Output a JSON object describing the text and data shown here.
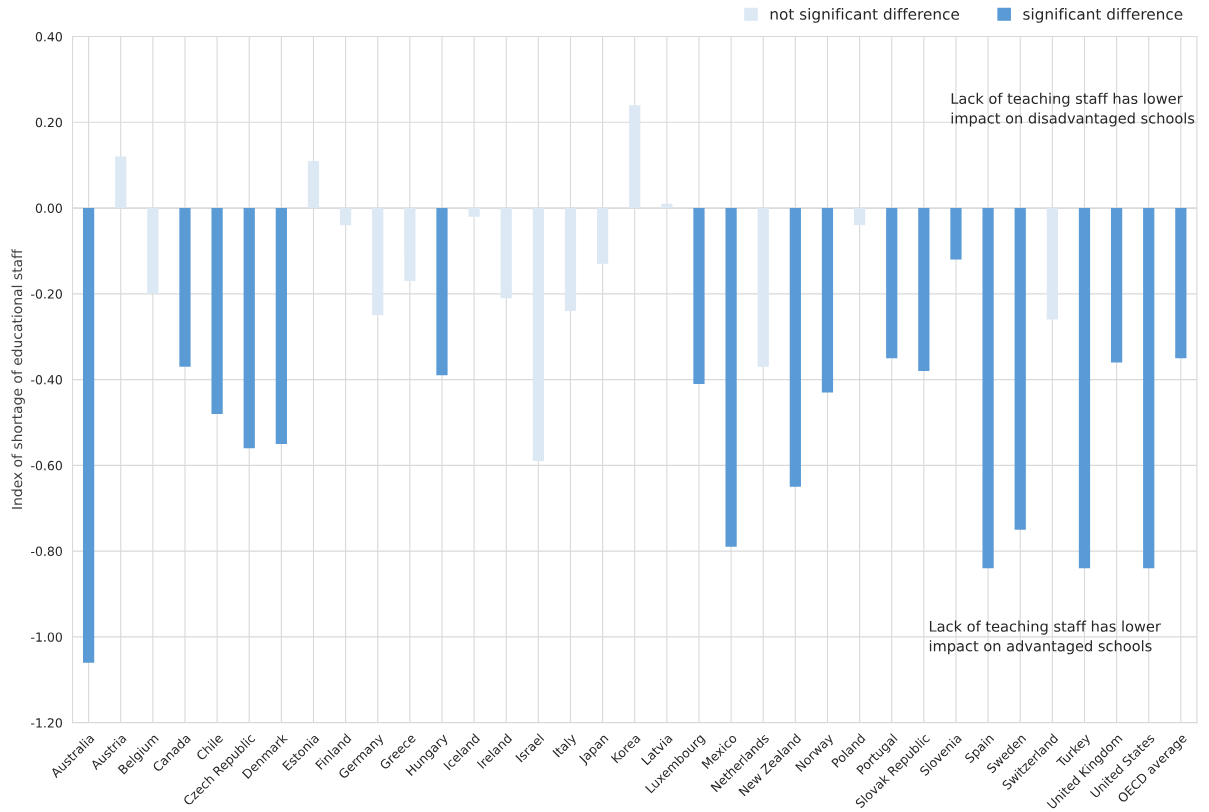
{
  "chart_data": {
    "type": "bar",
    "ylabel": "Index of shortage of educational staff",
    "categories": [
      "Australia",
      "Austria",
      "Belgium",
      "Canada",
      "Chile",
      "Czech Republic",
      "Denmark",
      "Estonia",
      "Finland",
      "Germany",
      "Greece",
      "Hungary",
      "Iceland",
      "Ireland",
      "Israel",
      "Italy",
      "Japan",
      "Korea",
      "Latvia",
      "Luxembourg",
      "Mexico",
      "Netherlands",
      "New Zealand",
      "Norway",
      "Poland",
      "Portugal",
      "Slovak Republic",
      "Slovenia",
      "Spain",
      "Sweden",
      "Switzerland",
      "Turkey",
      "United Kingdom",
      "United States",
      "OECD average"
    ],
    "stacked": true,
    "series": [
      {
        "name": "not significant difference",
        "color": "#dde8f5",
        "values": [
          null,
          0.12,
          -0.2,
          null,
          null,
          null,
          null,
          0.11,
          -0.04,
          -0.25,
          -0.17,
          null,
          -0.02,
          -0.21,
          -0.59,
          -0.24,
          -0.13,
          0.24,
          0.01,
          null,
          null,
          -0.37,
          null,
          null,
          -0.04,
          null,
          null,
          null,
          null,
          null,
          -0.26,
          null,
          null,
          null,
          null
        ]
      },
      {
        "name": "significant difference",
        "color": "#5b9bd5",
        "values": [
          -1.06,
          null,
          null,
          -0.37,
          -0.48,
          -0.56,
          -0.55,
          null,
          null,
          null,
          null,
          -0.39,
          null,
          null,
          null,
          null,
          null,
          null,
          null,
          -0.41,
          -0.79,
          null,
          -0.65,
          -0.43,
          null,
          -0.35,
          -0.38,
          -0.12,
          -0.84,
          -0.75,
          null,
          -0.84,
          -0.36,
          -0.84,
          -0.35
        ]
      }
    ],
    "ylim": [
      -1.2,
      0.4
    ],
    "yticks": [
      {
        "value": -1.2,
        "label": "-1.20"
      },
      {
        "value": -1.0,
        "label": "-1.00"
      },
      {
        "value": -0.8,
        "label": "-0.80"
      },
      {
        "value": -0.6,
        "label": "-0.60"
      },
      {
        "value": -0.4,
        "label": "-0.40"
      },
      {
        "value": -0.2,
        "label": "-0.20"
      },
      {
        "value": 0,
        "label": "0.00"
      },
      {
        "value": 0.2,
        "label": "0.20"
      },
      {
        "value": 0.4,
        "label": "0.40"
      }
    ],
    "grid": true,
    "legend": "top right",
    "annotations": [
      "Lack of teaching staff has lower\nimpact on disadvantaged schools",
      "Lack of teaching staff has lower\nimpact on advantaged schools"
    ]
  }
}
